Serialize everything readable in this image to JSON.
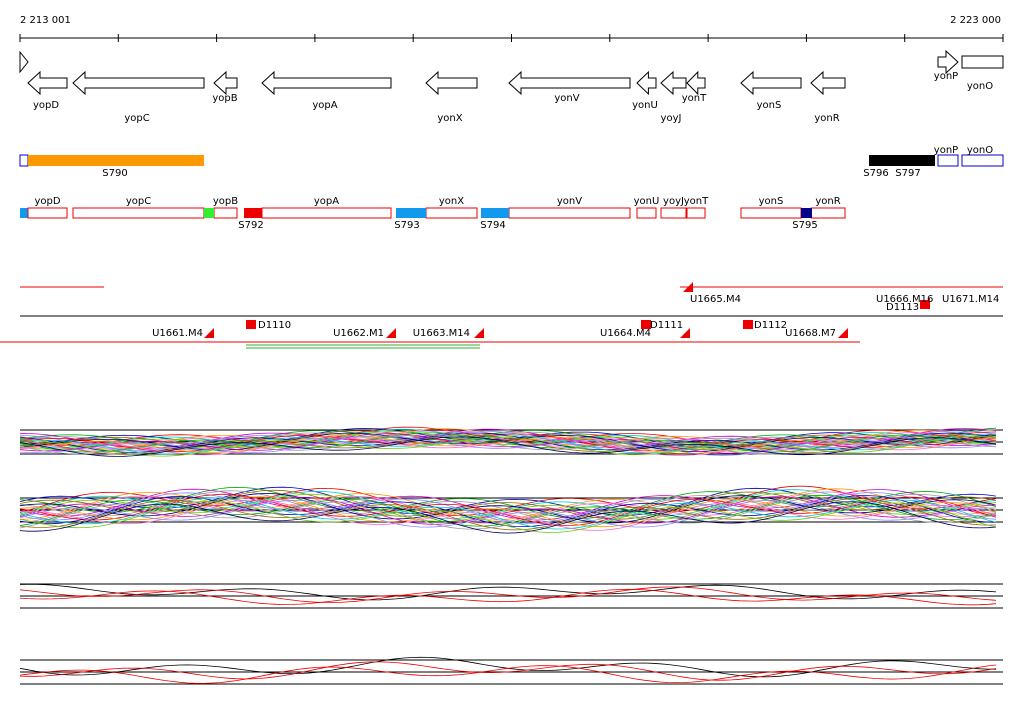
{
  "ruler": {
    "start": "2 213 001",
    "end": "2 223 000"
  },
  "genes": [
    "yopD",
    "yopC",
    "yopB",
    "yopA",
    "yonX",
    "yonV",
    "yonU",
    "yoyJ",
    "yonT",
    "yonS",
    "yonR",
    "yonP",
    "yonO"
  ],
  "segments": [
    "S790",
    "S796",
    "S797",
    "yonP",
    "yonO"
  ],
  "transcripts": [
    "yopD",
    "yopC",
    "yopB",
    "yopA",
    "yonX",
    "yonV",
    "yonU",
    "yoyJ",
    "yonT",
    "yonS",
    "yonR"
  ],
  "sites": [
    "S792",
    "S793",
    "S794",
    "S795"
  ],
  "units": [
    "U1665.M4",
    "U1666.M16",
    "U1671.M14",
    "D1113",
    "U1661.M4",
    "D1110",
    "U1662.M1",
    "U1663.M14",
    "U1664.M4",
    "D1111",
    "D1112",
    "U1668.M7"
  ]
}
